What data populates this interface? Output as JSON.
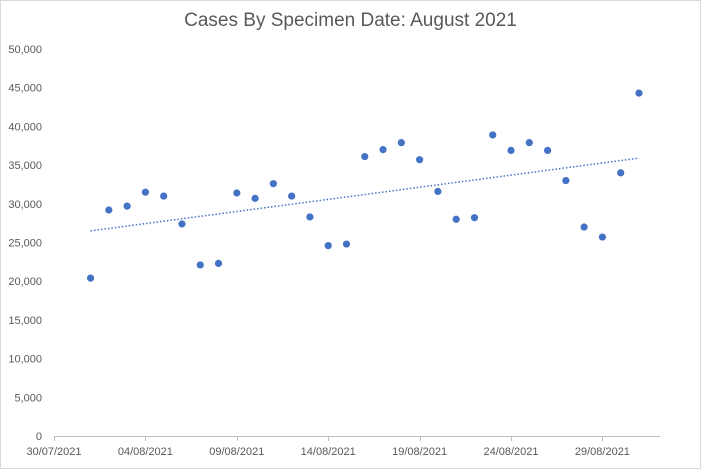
{
  "chart_data": {
    "type": "scatter",
    "title": "Cases By Specimen Date: August 2021",
    "xlabel": "",
    "ylabel": "",
    "ylim": [
      0,
      50000
    ],
    "y_ticks": [
      "0",
      "5,000",
      "10,000",
      "15,000",
      "20,000",
      "25,000",
      "30,000",
      "35,000",
      "40,000",
      "45,000",
      "50,000"
    ],
    "x_ticks": [
      "30/07/2021",
      "04/08/2021",
      "09/08/2021",
      "14/08/2021",
      "19/08/2021",
      "24/08/2021",
      "29/08/2021"
    ],
    "series": [
      {
        "name": "Cases",
        "color": "#4472C4",
        "x": [
          "01/08/2021",
          "02/08/2021",
          "03/08/2021",
          "04/08/2021",
          "05/08/2021",
          "06/08/2021",
          "07/08/2021",
          "08/08/2021",
          "09/08/2021",
          "10/08/2021",
          "11/08/2021",
          "12/08/2021",
          "13/08/2021",
          "14/08/2021",
          "15/08/2021",
          "16/08/2021",
          "17/08/2021",
          "18/08/2021",
          "19/08/2021",
          "20/08/2021",
          "21/08/2021",
          "22/08/2021",
          "23/08/2021",
          "24/08/2021",
          "25/08/2021",
          "26/08/2021",
          "27/08/2021",
          "28/08/2021",
          "29/08/2021",
          "30/08/2021",
          "31/08/2021"
        ],
        "x_index": [
          2,
          3,
          4,
          5,
          6,
          7,
          8,
          9,
          10,
          11,
          12,
          13,
          14,
          15,
          16,
          17,
          18,
          19,
          20,
          21,
          22,
          23,
          24,
          25,
          26,
          27,
          28,
          29,
          30,
          31,
          32
        ],
        "values": [
          20400,
          29200,
          29700,
          31500,
          31000,
          27400,
          22100,
          22300,
          31400,
          30700,
          32600,
          31000,
          28300,
          24600,
          24800,
          36100,
          37000,
          37900,
          35700,
          31600,
          28000,
          28200,
          38900,
          36900,
          37900,
          36900,
          33000,
          27000,
          25700,
          34000,
          44300
        ]
      }
    ],
    "trendline": {
      "type": "linear",
      "style": "dotted",
      "start": 26500,
      "end": 35900
    },
    "grid": false,
    "legend": "none"
  }
}
